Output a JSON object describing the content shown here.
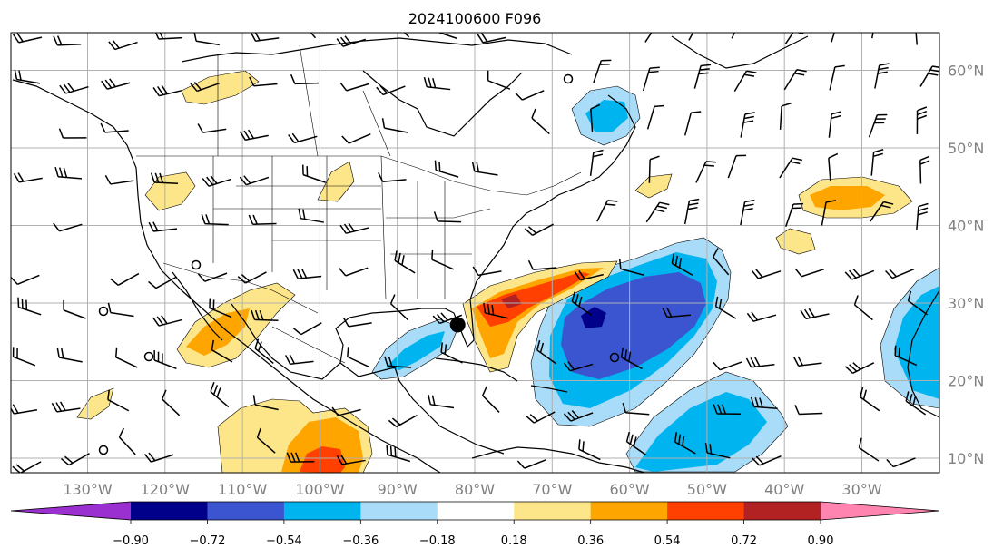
{
  "title": "2024100600 F096",
  "map": {
    "lon_range": [
      -140,
      -20
    ],
    "lat_range": [
      8,
      65
    ],
    "longitude_labels": [
      "130°W",
      "120°W",
      "110°W",
      "100°W",
      "90°W",
      "80°W",
      "70°W",
      "60°W",
      "50°W",
      "40°W",
      "30°W"
    ],
    "latitude_labels": [
      "60°N",
      "50°N",
      "40°N",
      "30°N",
      "20°N",
      "10°N"
    ],
    "grid_lons": [
      -130,
      -120,
      -110,
      -100,
      -90,
      -80,
      -70,
      -60,
      -50,
      -40,
      -30
    ],
    "grid_lats": [
      60,
      50,
      40,
      30,
      20,
      10
    ],
    "marker": {
      "lon": -82.2,
      "lat": 27.2
    }
  },
  "colorbar": {
    "tick_labels": [
      "−0.90",
      "−0.72",
      "−0.54",
      "−0.36",
      "−0.18",
      "0.18",
      "0.36",
      "0.54",
      "0.72",
      "0.90"
    ],
    "colors": [
      "#9b30d0",
      "#00008b",
      "#3a55cf",
      "#00b4f0",
      "#a8dcf8",
      "#ffffff",
      "#fde68a",
      "#ffa500",
      "#ff4000",
      "#b22222",
      "#ff85b0"
    ],
    "extend": "both"
  }
}
